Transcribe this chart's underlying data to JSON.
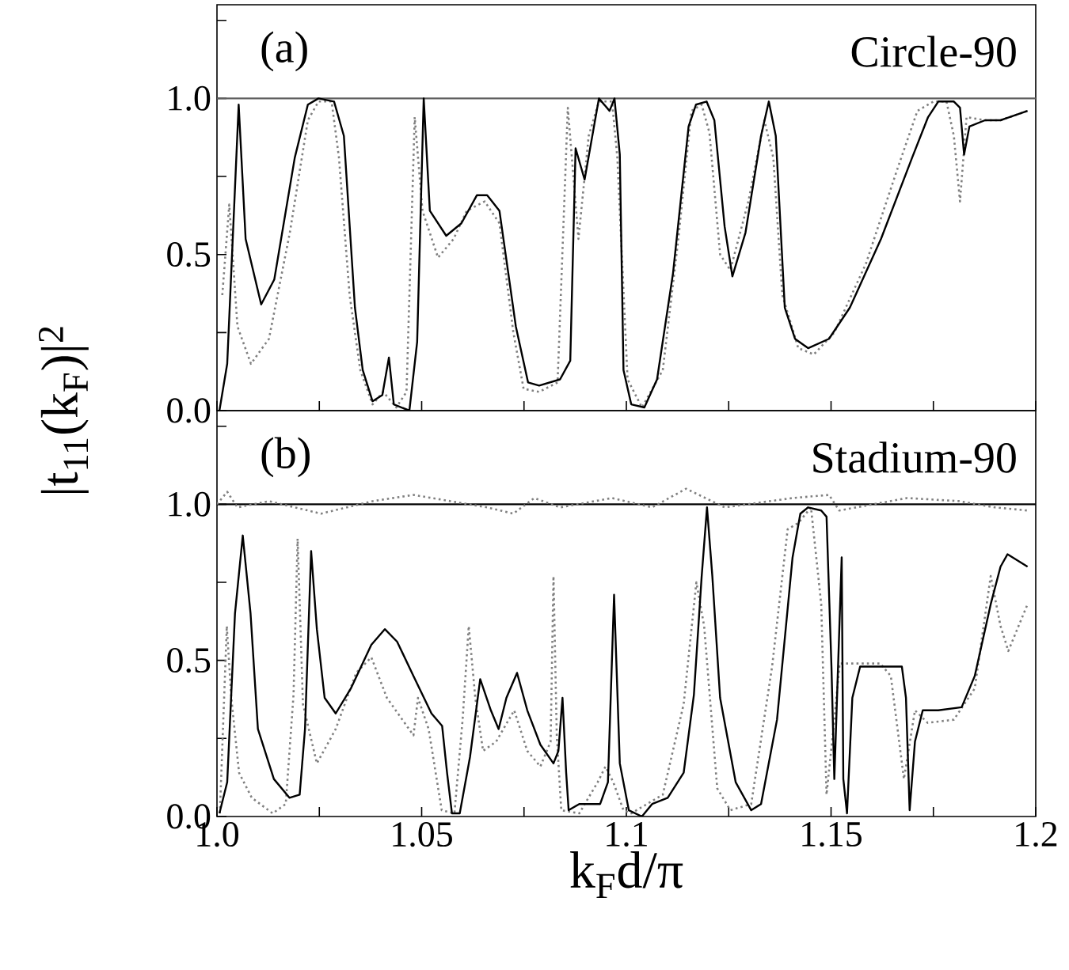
{
  "chart_data": [
    {
      "type": "line",
      "annotations": [
        "(a)",
        "Circle-90"
      ],
      "ylabel": "|t$_{11}$(k$_{F}$)|$^{2}$",
      "tick_labels": "y",
      "xlim": [
        1.0,
        1.2
      ],
      "ylim": [
        0,
        1.3
      ],
      "xticks": [
        1.0,
        1.025,
        1.05,
        1.075,
        1.1,
        1.125,
        1.15,
        1.175,
        1.2
      ],
      "yticks": [
        {
          "value": 0,
          "label": "0.0"
        },
        {
          "value": 0.25,
          "label": null
        },
        {
          "value": 0.5,
          "label": "0.5"
        },
        {
          "value": 0.75,
          "label": null
        },
        {
          "value": 1.0,
          "label": "1.0"
        },
        {
          "value": 1.25,
          "label": null
        }
      ],
      "series": [
        {
          "color": "#606060",
          "line_style": "solid",
          "x": [
            1.0,
            1.2
          ],
          "values": [
            1.0,
            1.0
          ]
        },
        {
          "color": "#808080",
          "line_style": "dotted",
          "x": [
            1.0013,
            1.003,
            1.005,
            1.0083,
            1.0127,
            1.0178,
            1.0222,
            1.0248,
            1.028,
            1.0298,
            1.0324,
            1.035,
            1.038,
            1.0406,
            1.0438,
            1.0463,
            1.0483,
            1.0502,
            1.054,
            1.0578,
            1.061,
            1.0654,
            1.069,
            1.0724,
            1.0749,
            1.0787,
            1.0832,
            1.0857,
            1.0883,
            1.0908,
            1.0933,
            1.0965,
            1.0978,
            1.1003,
            1.1038,
            1.1089,
            1.1127,
            1.1159,
            1.1184,
            1.1203,
            1.1229,
            1.1254,
            1.1298,
            1.1337,
            1.1359,
            1.1381,
            1.142,
            1.1458,
            1.1508,
            1.1585,
            1.1661,
            1.1711,
            1.175,
            1.1782,
            1.18,
            1.1815,
            1.1831,
            1.1876,
            1.1914,
            1.198
          ],
          "values": [
            0.37,
            0.66,
            0.27,
            0.15,
            0.23,
            0.57,
            0.93,
            0.99,
            0.99,
            0.81,
            0.37,
            0.13,
            0.02,
            0.06,
            0.01,
            0.06,
            0.94,
            0.64,
            0.49,
            0.55,
            0.64,
            0.67,
            0.6,
            0.25,
            0.07,
            0.06,
            0.09,
            0.97,
            0.55,
            0.88,
            0.99,
            0.99,
            0.81,
            0.1,
            0.01,
            0.13,
            0.55,
            0.96,
            0.98,
            0.89,
            0.5,
            0.45,
            0.67,
            0.93,
            0.81,
            0.37,
            0.2,
            0.18,
            0.25,
            0.47,
            0.77,
            0.96,
            0.99,
            0.99,
            0.88,
            0.67,
            0.94,
            0.93,
            0.93,
            0.96
          ]
        },
        {
          "color": "#000000",
          "line_style": "solid",
          "x": [
            1.0006,
            1.0025,
            1.0053,
            1.007,
            1.0108,
            1.014,
            1.019,
            1.0222,
            1.0248,
            1.0286,
            1.031,
            1.0337,
            1.0356,
            1.038,
            1.0404,
            1.042,
            1.0432,
            1.047,
            1.0489,
            1.0505,
            1.052,
            1.056,
            1.0597,
            1.0635,
            1.066,
            1.069,
            1.073,
            1.076,
            1.0787,
            1.0838,
            1.0863,
            1.0876,
            1.0898,
            1.0933,
            1.0959,
            1.0971,
            1.0984,
            1.0993,
            1.1012,
            1.1044,
            1.1075,
            1.1114,
            1.1152,
            1.117,
            1.1196,
            1.1215,
            1.124,
            1.1259,
            1.1291,
            1.1329,
            1.1348,
            1.1365,
            1.1387,
            1.1412,
            1.1444,
            1.1495,
            1.1546,
            1.1622,
            1.1698,
            1.1737,
            1.1762,
            1.18,
            1.1815,
            1.1825,
            1.1838,
            1.1876,
            1.1914,
            1.198
          ],
          "values": [
            0.0,
            0.15,
            0.98,
            0.55,
            0.34,
            0.42,
            0.81,
            0.98,
            1.0,
            0.99,
            0.88,
            0.33,
            0.13,
            0.03,
            0.05,
            0.17,
            0.02,
            0.0,
            0.22,
            1.0,
            0.64,
            0.56,
            0.6,
            0.69,
            0.69,
            0.64,
            0.27,
            0.09,
            0.08,
            0.1,
            0.16,
            0.84,
            0.74,
            1.0,
            0.96,
            1.0,
            0.82,
            0.13,
            0.02,
            0.01,
            0.1,
            0.44,
            0.91,
            0.98,
            0.99,
            0.93,
            0.59,
            0.43,
            0.57,
            0.88,
            0.99,
            0.88,
            0.33,
            0.23,
            0.2,
            0.23,
            0.33,
            0.55,
            0.81,
            0.94,
            0.99,
            0.99,
            0.97,
            0.82,
            0.91,
            0.93,
            0.93,
            0.96
          ]
        }
      ]
    },
    {
      "type": "line",
      "annotations": [
        "(b)",
        "Stadium-90"
      ],
      "xlabel": "k$_{F}$d/π",
      "xlim": [
        1.0,
        1.2
      ],
      "ylim": [
        0,
        1.3
      ],
      "xticks": [
        {
          "value": 1.0,
          "label": "1.0"
        },
        {
          "value": 1.025,
          "label": null
        },
        {
          "value": 1.05,
          "label": "1.05"
        },
        {
          "value": 1.075,
          "label": null
        },
        {
          "value": 1.1,
          "label": "1.1"
        },
        {
          "value": 1.125,
          "label": null
        },
        {
          "value": 1.15,
          "label": "1.15"
        },
        {
          "value": 1.175,
          "label": null
        },
        {
          "value": 1.2,
          "label": "1.2"
        }
      ],
      "yticks": [
        {
          "value": 0,
          "label": "0.0"
        },
        {
          "value": 0.25,
          "label": null
        },
        {
          "value": 0.5,
          "label": "0.5"
        },
        {
          "value": 0.75,
          "label": null
        },
        {
          "value": 1.0,
          "label": "1.0"
        },
        {
          "value": 1.25,
          "label": null
        }
      ],
      "series": [
        {
          "color": "#000000",
          "line_style": "solid",
          "x": [
            1.0,
            1.2
          ],
          "values": [
            1.0,
            1.0
          ]
        },
        {
          "color": "#808080",
          "line_style": "dotted",
          "x": [
            1.0,
            1.0025,
            1.005,
            1.0127,
            1.0254,
            1.0317,
            1.038,
            1.048,
            1.057,
            1.066,
            1.0724,
            1.0775,
            1.0838,
            1.0965,
            1.1063,
            1.1146,
            1.124,
            1.1406,
            1.1495,
            1.152,
            1.1686,
            1.1813,
            1.19,
            1.198
          ],
          "values": [
            1.0,
            1.04,
            0.99,
            1.01,
            0.97,
            0.99,
            1.01,
            1.03,
            1.01,
            0.99,
            0.97,
            1.02,
            0.99,
            1.02,
            0.99,
            1.05,
            0.99,
            1.02,
            1.03,
            0.98,
            1.02,
            1.01,
            0.99,
            0.98
          ]
        },
        {
          "color": "#808080",
          "line_style": "dotted",
          "x": [
            1.0007,
            1.0024,
            1.0035,
            1.0054,
            1.0085,
            1.0136,
            1.0168,
            1.0187,
            1.0197,
            1.021,
            1.0244,
            1.029,
            1.034,
            1.0377,
            1.0415,
            1.048,
            1.0491,
            1.0517,
            1.0549,
            1.058,
            1.06,
            1.0615,
            1.0631,
            1.065,
            1.0682,
            1.0726,
            1.0758,
            1.079,
            1.0815,
            1.0822,
            1.083,
            1.0841,
            1.0885,
            1.093,
            1.0949,
            1.0968,
            1.0993,
            1.1012,
            1.1089,
            1.114,
            1.1171,
            1.119,
            1.1222,
            1.1254,
            1.1305,
            1.1356,
            1.1394,
            1.142,
            1.1451,
            1.1476,
            1.1489,
            1.1508,
            1.1521,
            1.1544,
            1.162,
            1.1646,
            1.1678,
            1.1705,
            1.1736,
            1.18,
            1.1851,
            1.189,
            1.1914,
            1.1933,
            1.198
          ],
          "values": [
            0.01,
            0.61,
            0.38,
            0.14,
            0.06,
            0.01,
            0.04,
            0.39,
            0.89,
            0.36,
            0.17,
            0.28,
            0.46,
            0.51,
            0.38,
            0.26,
            0.38,
            0.28,
            0.02,
            0.01,
            0.31,
            0.61,
            0.38,
            0.21,
            0.24,
            0.34,
            0.21,
            0.16,
            0.24,
            0.77,
            0.26,
            0.02,
            0.01,
            0.11,
            0.16,
            0.11,
            0.02,
            0.01,
            0.07,
            0.36,
            0.75,
            0.61,
            0.09,
            0.02,
            0.04,
            0.48,
            0.92,
            0.94,
            0.99,
            0.68,
            0.07,
            0.31,
            0.49,
            0.49,
            0.49,
            0.45,
            0.12,
            0.34,
            0.3,
            0.31,
            0.41,
            0.77,
            0.61,
            0.53,
            0.68
          ]
        },
        {
          "color": "#000000",
          "line_style": "solid",
          "x": [
            1.0006,
            1.0025,
            1.0044,
            1.0063,
            1.0082,
            1.01,
            1.0139,
            1.0177,
            1.0202,
            1.0215,
            1.023,
            1.0244,
            1.0263,
            1.029,
            1.0327,
            1.0377,
            1.041,
            1.044,
            1.048,
            1.0524,
            1.055,
            1.0562,
            1.0574,
            1.0593,
            1.0618,
            1.0643,
            1.0669,
            1.0688,
            1.0707,
            1.0733,
            1.0758,
            1.079,
            1.0822,
            1.0834,
            1.0844,
            1.0853,
            1.0859,
            1.0885,
            1.0936,
            1.0955,
            1.097,
            1.0984,
            1.1006,
            1.1038,
            1.1063,
            1.1101,
            1.114,
            1.1165,
            1.1184,
            1.1197,
            1.121,
            1.1229,
            1.1267,
            1.1305,
            1.1329,
            1.1368,
            1.1406,
            1.1425,
            1.1444,
            1.1476,
            1.1489,
            1.1501,
            1.1508,
            1.1526,
            1.153,
            1.1539,
            1.1552,
            1.1571,
            1.1673,
            1.1683,
            1.1692,
            1.1705,
            1.1724,
            1.1762,
            1.1819,
            1.1851,
            1.189,
            1.1914,
            1.1931,
            1.198
          ],
          "values": [
            0.01,
            0.11,
            0.65,
            0.9,
            0.65,
            0.28,
            0.12,
            0.06,
            0.07,
            0.28,
            0.85,
            0.6,
            0.38,
            0.33,
            0.41,
            0.55,
            0.6,
            0.56,
            0.45,
            0.33,
            0.29,
            0.14,
            0.01,
            0.01,
            0.19,
            0.44,
            0.34,
            0.28,
            0.38,
            0.46,
            0.34,
            0.23,
            0.17,
            0.21,
            0.38,
            0.14,
            0.02,
            0.04,
            0.04,
            0.11,
            0.71,
            0.17,
            0.02,
            0.0,
            0.04,
            0.06,
            0.14,
            0.39,
            0.77,
            0.99,
            0.77,
            0.38,
            0.11,
            0.02,
            0.04,
            0.31,
            0.83,
            0.97,
            0.99,
            0.98,
            0.96,
            0.48,
            0.12,
            0.83,
            0.12,
            0.01,
            0.38,
            0.48,
            0.48,
            0.38,
            0.02,
            0.24,
            0.34,
            0.34,
            0.35,
            0.45,
            0.68,
            0.8,
            0.84,
            0.8
          ]
        }
      ]
    }
  ]
}
